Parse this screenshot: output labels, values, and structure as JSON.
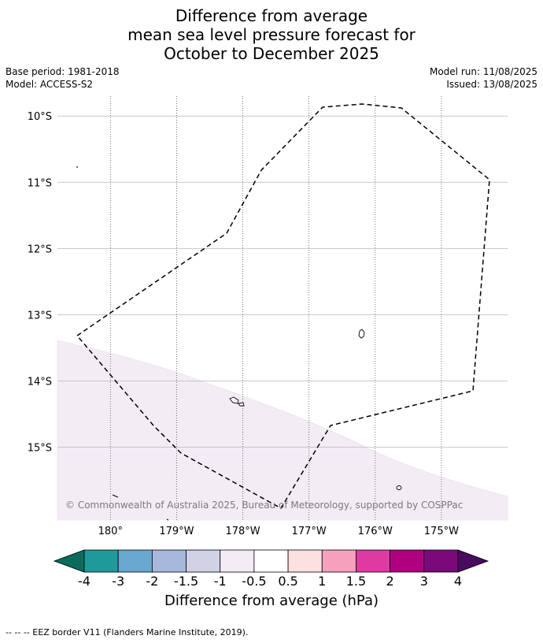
{
  "title": {
    "line1": "Difference from average",
    "line2": "mean sea level pressure forecast for",
    "line3": "October to December 2025"
  },
  "meta": {
    "base_period": "Base period: 1981-2018",
    "model": "Model: ACCESS-S2",
    "model_run": "Model run: 11/08/2025",
    "issued": "Issued: 13/08/2025"
  },
  "map": {
    "lon_range": [
      -180.8,
      -174.0
    ],
    "lat_range": [
      -16.1,
      -9.7
    ],
    "lon_ticks": [
      {
        "lon": -180,
        "label": "180°"
      },
      {
        "lon": -179,
        "label": "179°W"
      },
      {
        "lon": -178,
        "label": "178°W"
      },
      {
        "lon": -177,
        "label": "177°W"
      },
      {
        "lon": -176,
        "label": "176°W"
      },
      {
        "lon": -175,
        "label": "175°W"
      }
    ],
    "lat_ticks": [
      {
        "lat": -10,
        "label": "10°S"
      },
      {
        "lat": -11,
        "label": "11°S"
      },
      {
        "lat": -12,
        "label": "12°S"
      },
      {
        "lat": -13,
        "label": "13°S"
      },
      {
        "lat": -14,
        "label": "14°S"
      },
      {
        "lat": -15,
        "label": "15°S"
      }
    ],
    "shaded_region_color": "#f3ecf5",
    "shaded_region_category": "-1 to -0.5",
    "copyright": "© Commonwealth of Australia 2025, Bureau of Meteorology, supported by COSPPac"
  },
  "colorbar": {
    "title": "Difference from average (hPa)",
    "low_extend_color": "#0b6b5d",
    "high_extend_color": "#4a0a5f",
    "segments": [
      "#1f9a9a",
      "#69a8d0",
      "#a8b8dc",
      "#d2d2e6",
      "#f3ecf5",
      "#ffffff",
      "#fde0e0",
      "#f7a0bd",
      "#df3aa1",
      "#b0007f",
      "#7a0a7a"
    ],
    "tick_labels": [
      "-4",
      "-3",
      "-2",
      "-1.5",
      "-1",
      "-0.5",
      "0.5",
      "1",
      "1.5",
      "2",
      "3",
      "4"
    ]
  },
  "footer": "--  --  -- EEZ border V11 (Flanders Marine Institute, 2019)."
}
